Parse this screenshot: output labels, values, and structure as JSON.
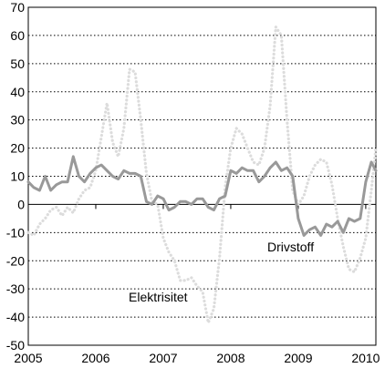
{
  "chart_data": {
    "type": "line",
    "title": "",
    "xlabel": "",
    "ylabel": "",
    "xlim": [
      2005,
      2010.15
    ],
    "ylim": [
      -50,
      70
    ],
    "y_ticks": [
      -50,
      -40,
      -30,
      -20,
      -10,
      0,
      10,
      20,
      30,
      40,
      50,
      60,
      70
    ],
    "y_tick_labels": [
      "-50",
      "-40",
      "-30",
      "-20",
      "-10",
      "0",
      "10",
      "20",
      "30",
      "40",
      "50",
      "60",
      "70"
    ],
    "x_ticks": [
      2005,
      2006,
      2007,
      2008,
      2009,
      2010
    ],
    "x_tick_labels": [
      "2005",
      "2006",
      "2007",
      "2008",
      "2009",
      "2010"
    ],
    "grid": "horizontal dotted",
    "legend": "none",
    "series": [
      {
        "name": "Drivstoff",
        "color": "#999999",
        "style": "solid",
        "x": [
          2005.0,
          2005.083,
          2005.167,
          2005.25,
          2005.333,
          2005.417,
          2005.5,
          2005.583,
          2005.667,
          2005.75,
          2005.833,
          2005.917,
          2006.0,
          2006.083,
          2006.167,
          2006.25,
          2006.333,
          2006.417,
          2006.5,
          2006.583,
          2006.667,
          2006.75,
          2006.833,
          2006.917,
          2007.0,
          2007.083,
          2007.167,
          2007.25,
          2007.333,
          2007.417,
          2007.5,
          2007.583,
          2007.667,
          2007.75,
          2007.833,
          2007.917,
          2008.0,
          2008.083,
          2008.167,
          2008.25,
          2008.333,
          2008.417,
          2008.5,
          2008.583,
          2008.667,
          2008.75,
          2008.833,
          2008.917,
          2009.0,
          2009.083,
          2009.167,
          2009.25,
          2009.333,
          2009.417,
          2009.5,
          2009.583,
          2009.667,
          2009.75,
          2009.833,
          2009.917,
          2010.0,
          2010.083,
          2010.15
        ],
        "y": [
          8,
          6,
          5,
          10,
          5,
          7,
          8,
          8,
          17,
          10,
          8,
          11,
          13,
          14,
          12,
          10,
          9,
          12,
          11,
          11,
          10,
          1,
          0,
          3,
          2,
          -2,
          -1,
          1,
          1,
          0,
          2,
          2,
          -1,
          -2,
          2,
          3,
          12,
          11,
          13,
          12,
          12,
          8,
          10,
          13,
          15,
          12,
          13,
          10,
          -5,
          -11,
          -9,
          -8,
          -11,
          -7,
          -8,
          -6,
          -10,
          -5,
          -6,
          -5,
          8,
          15,
          12
        ]
      },
      {
        "name": "Elektrisitet",
        "color": "#dcdcdc",
        "style": "dotted",
        "x": [
          2005.0,
          2005.083,
          2005.167,
          2005.25,
          2005.333,
          2005.417,
          2005.5,
          2005.583,
          2005.667,
          2005.75,
          2005.833,
          2005.917,
          2006.0,
          2006.083,
          2006.167,
          2006.25,
          2006.333,
          2006.417,
          2006.5,
          2006.583,
          2006.667,
          2006.75,
          2006.833,
          2006.917,
          2007.0,
          2007.083,
          2007.167,
          2007.25,
          2007.333,
          2007.417,
          2007.5,
          2007.583,
          2007.667,
          2007.75,
          2007.833,
          2007.917,
          2008.0,
          2008.083,
          2008.167,
          2008.25,
          2008.333,
          2008.417,
          2008.5,
          2008.583,
          2008.667,
          2008.75,
          2008.833,
          2008.917,
          2009.0,
          2009.083,
          2009.167,
          2009.25,
          2009.333,
          2009.417,
          2009.5,
          2009.583,
          2009.667,
          2009.75,
          2009.833,
          2009.917,
          2010.0,
          2010.083,
          2010.15
        ],
        "y": [
          -10,
          -11,
          -7,
          -5,
          -2,
          -1,
          -4,
          -1,
          -3,
          2,
          5,
          6,
          12,
          24,
          36,
          22,
          17,
          27,
          48,
          47,
          30,
          11,
          1,
          0,
          -12,
          -17,
          -20,
          -27,
          -27,
          -26,
          -29,
          -31,
          -42,
          -37,
          -19,
          6,
          20,
          27,
          25,
          20,
          15,
          14,
          20,
          35,
          63,
          60,
          30,
          5,
          0,
          3,
          10,
          14,
          16,
          15,
          7,
          -5,
          -15,
          -23,
          -24,
          -19,
          -12,
          5,
          20
        ]
      }
    ],
    "annotations": [
      {
        "text": "Drivstoff",
        "series": "Drivstoff"
      },
      {
        "text": "Elektrisitet",
        "series": "Elektrisitet"
      }
    ]
  }
}
